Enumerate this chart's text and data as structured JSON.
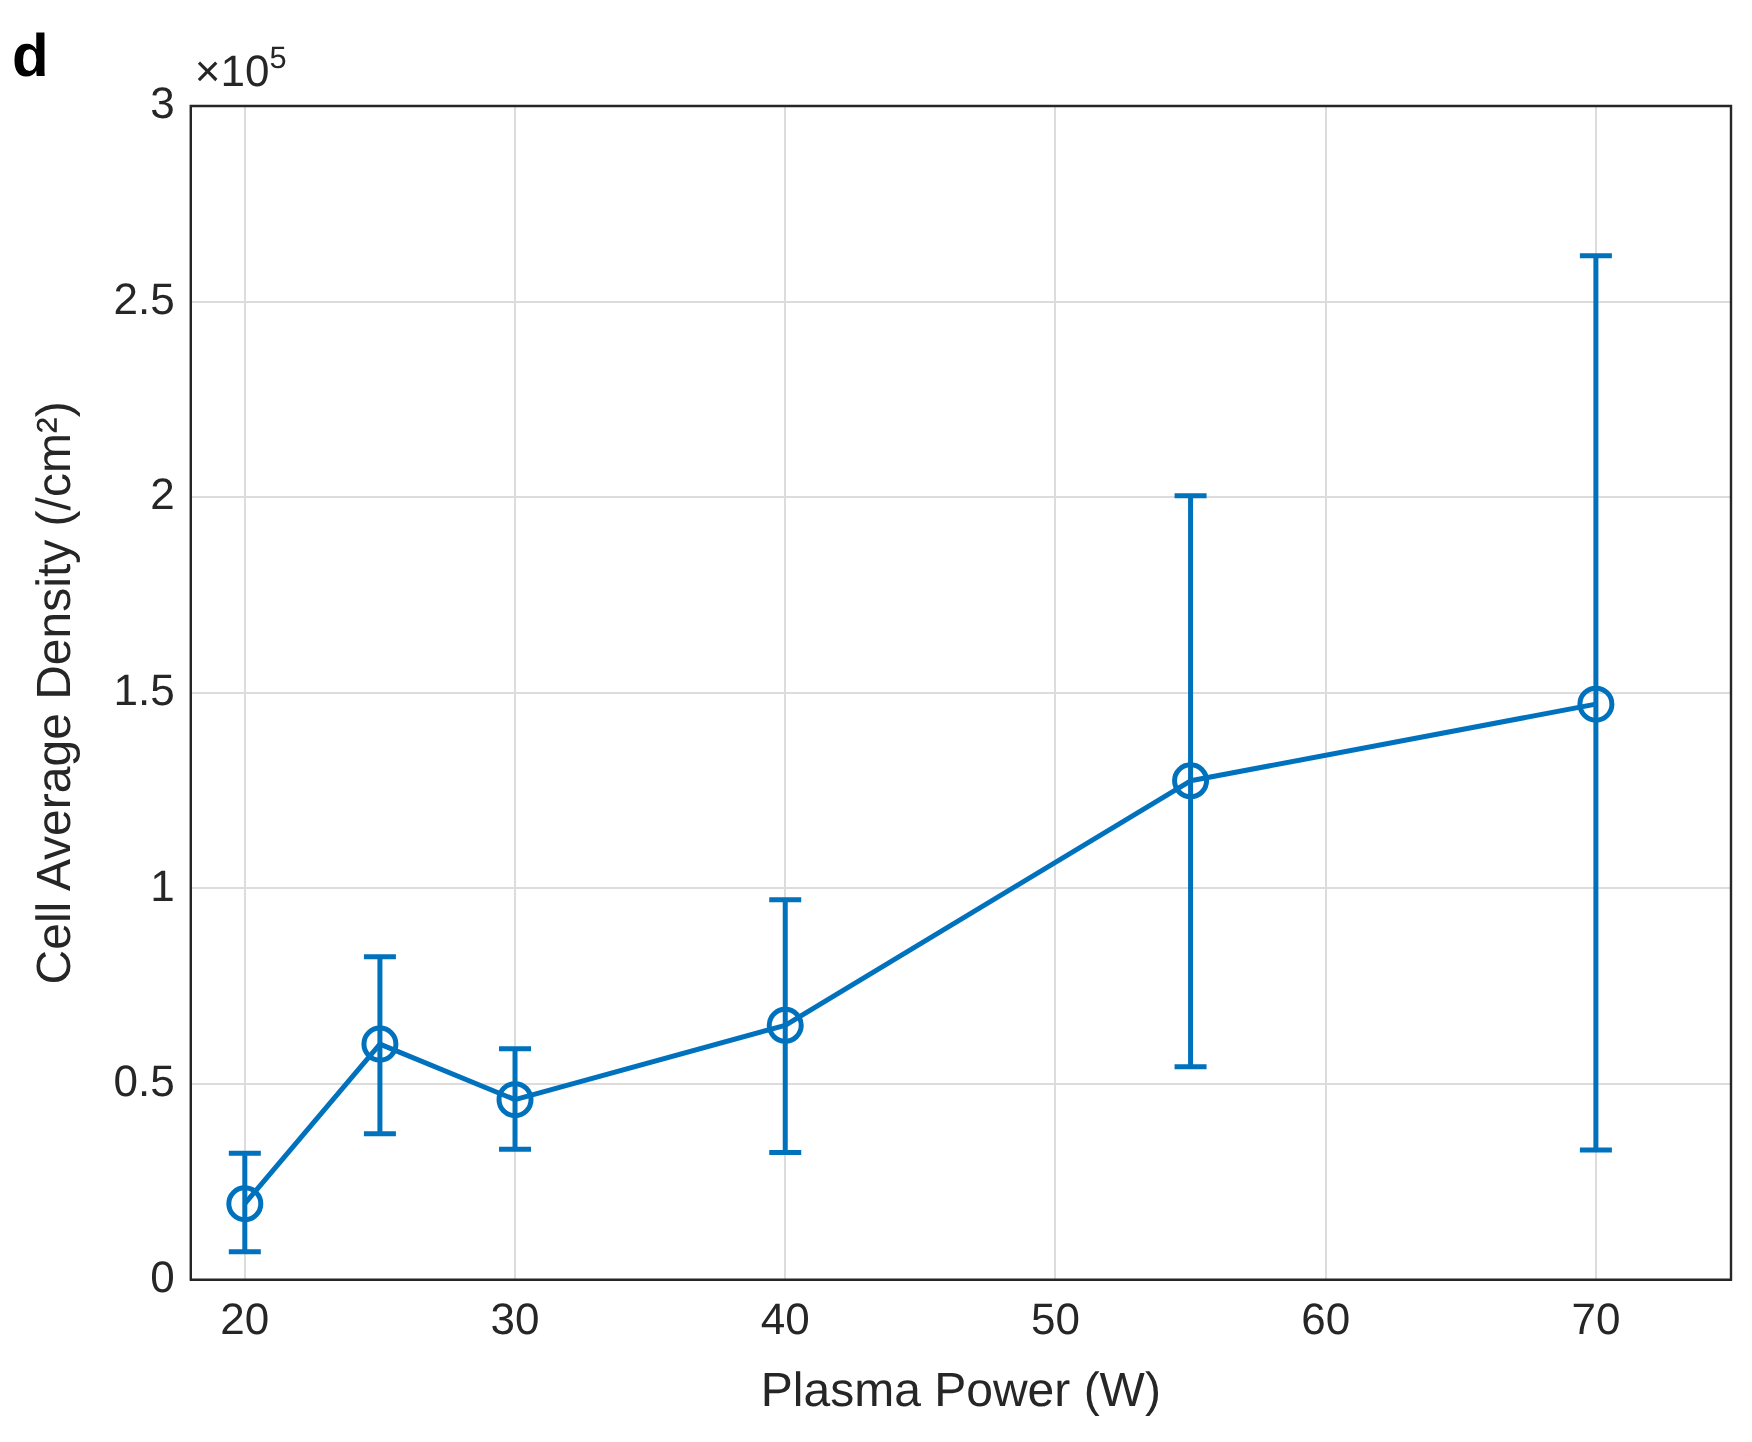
{
  "chart_data": {
    "type": "line",
    "xlabel": "Plasma Power (W)",
    "ylabel": "Cell Average Density (/cm²)",
    "annotations": [
      "d",
      "×10$^{5}$"
    ],
    "x": [
      20,
      25,
      30,
      40,
      55,
      70
    ],
    "series": [
      {
        "color": "#0072bd",
        "values": [
          0.194,
          0.602,
          0.46,
          0.65,
          1.275,
          1.471
        ],
        "errors": [
          [
            0.071,
            0.323
          ],
          [
            0.373,
            0.825
          ],
          [
            0.333,
            0.59
          ],
          [
            0.325,
            0.971
          ],
          [
            0.544,
            2.004
          ],
          [
            0.331,
            2.617
          ]
        ]
      }
    ],
    "xlim": [
      18,
      75
    ],
    "xticks": [
      20,
      30,
      40,
      50,
      60,
      70
    ],
    "ylim": [
      0,
      3
    ],
    "yticks": [
      0,
      0.5,
      1,
      1.5,
      2,
      2.5,
      3
    ],
    "grid": true,
    "legend": false,
    "marker": "circle",
    "line_style": "solid"
  }
}
